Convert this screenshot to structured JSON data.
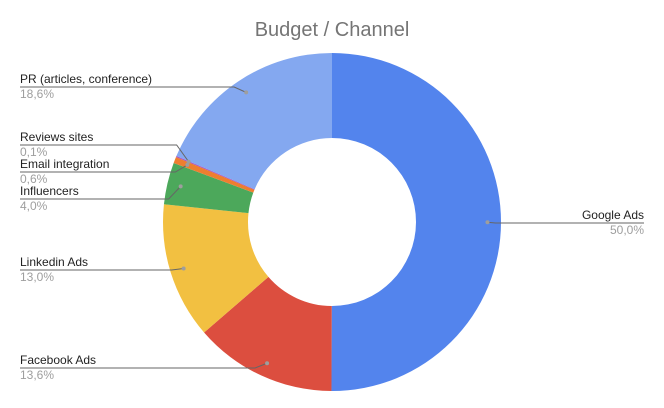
{
  "chart_data": {
    "type": "pie",
    "donut": true,
    "title": "Budget / Channel",
    "slices": [
      {
        "label": "Google Ads",
        "value": 50.0,
        "display": "50,0%",
        "color": "#5384ed"
      },
      {
        "label": "Facebook Ads",
        "value": 13.6,
        "display": "13,6%",
        "color": "#dc4e3f"
      },
      {
        "label": "Linkedin Ads",
        "value": 13.0,
        "display": "13,0%",
        "color": "#f2c041"
      },
      {
        "label": "Influencers",
        "value": 4.0,
        "display": "4,0%",
        "color": "#4ca85b"
      },
      {
        "label": "Email integration",
        "value": 0.6,
        "display": "0,6%",
        "color": "#ee7e30"
      },
      {
        "label": "Reviews sites",
        "value": 0.1,
        "display": "0,1%",
        "color": "#a94fc0"
      },
      {
        "label": "PR (articles, conference)",
        "value": 18.6,
        "display": "18,6%",
        "color": "#84a8f0"
      }
    ]
  }
}
